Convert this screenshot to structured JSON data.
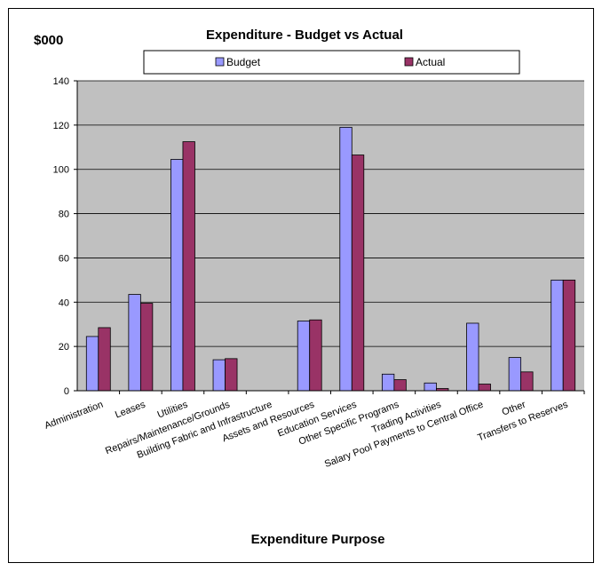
{
  "chart_data": {
    "type": "bar",
    "title": "Expenditure - Budget vs Actual",
    "ylabel": "$000",
    "xlabel": "Expenditure Purpose",
    "ylim": [
      0,
      140
    ],
    "yticks": [
      0,
      20,
      40,
      60,
      80,
      100,
      120,
      140
    ],
    "grid": true,
    "legend_position": "top",
    "plot_background": "#c0c0c0",
    "categories": [
      "Administration",
      "Leases",
      "Utilities",
      "Repairs/Maintenance/Grounds",
      "Building Fabric and Infrastructure",
      "Assets and Resources",
      "Education Services",
      "Other Specific Programs",
      "Trading Activities",
      "Salary Pool Payments to Central Office",
      "Other",
      "Transfers to Reserves"
    ],
    "series": [
      {
        "name": "Budget",
        "color": "#9999ff",
        "values": [
          24.5,
          43.5,
          104.5,
          14,
          0,
          31.5,
          119,
          7.5,
          3.5,
          30.5,
          15,
          50
        ]
      },
      {
        "name": "Actual",
        "color": "#993366",
        "values": [
          28.5,
          39.5,
          112.5,
          14.5,
          0,
          32,
          106.5,
          5,
          1,
          3,
          8.5,
          50
        ]
      }
    ]
  }
}
